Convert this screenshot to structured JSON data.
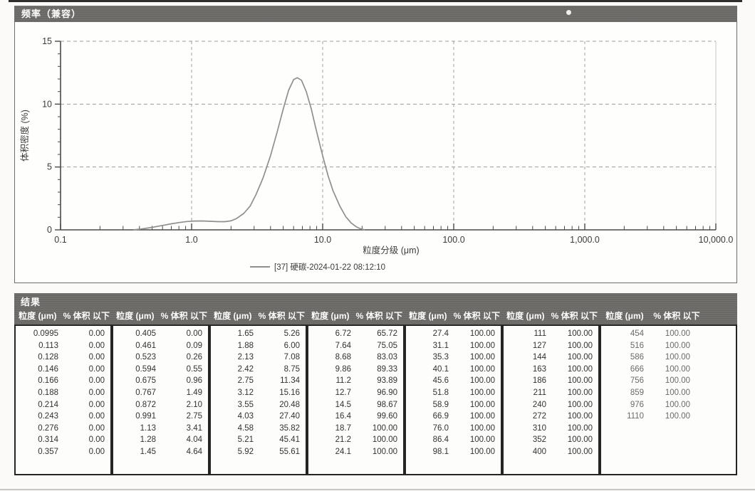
{
  "chart_panel": {
    "title": "频率（兼容）"
  },
  "chart_data": {
    "type": "line",
    "title": "频率（兼容）",
    "xlabel": "粒度分级 (μm)",
    "ylabel": "体积密度 (%)",
    "x_scale": "log",
    "xlim": [
      0.1,
      10000
    ],
    "ylim": [
      0,
      15
    ],
    "y_ticks": [
      0,
      5,
      10,
      15
    ],
    "x_ticks": [
      {
        "v": 0.1,
        "label": "0.1"
      },
      {
        "v": 1,
        "label": "1.0"
      },
      {
        "v": 10,
        "label": "10.0"
      },
      {
        "v": 100,
        "label": "100.0"
      },
      {
        "v": 1000,
        "label": "1,000.0"
      },
      {
        "v": 10000,
        "label": "10,000.0"
      }
    ],
    "grid": "dashed",
    "legend_position": "bottom",
    "series": [
      {
        "name": "[37] 硬碳-2024-01-22 08:12:10",
        "color": "#8f8f8f",
        "points": [
          [
            0.36,
            0
          ],
          [
            0.42,
            0.08
          ],
          [
            0.5,
            0.2
          ],
          [
            0.6,
            0.35
          ],
          [
            0.7,
            0.48
          ],
          [
            0.8,
            0.58
          ],
          [
            0.92,
            0.66
          ],
          [
            1.05,
            0.7
          ],
          [
            1.2,
            0.71
          ],
          [
            1.4,
            0.68
          ],
          [
            1.6,
            0.65
          ],
          [
            1.8,
            0.65
          ],
          [
            2.0,
            0.72
          ],
          [
            2.2,
            0.9
          ],
          [
            2.5,
            1.3
          ],
          [
            2.8,
            1.9
          ],
          [
            3.1,
            2.8
          ],
          [
            3.5,
            4.1
          ],
          [
            4.0,
            5.9
          ],
          [
            4.5,
            7.8
          ],
          [
            5.0,
            9.6
          ],
          [
            5.5,
            11.1
          ],
          [
            6.0,
            11.95
          ],
          [
            6.4,
            12.1
          ],
          [
            6.9,
            11.9
          ],
          [
            7.5,
            11.0
          ],
          [
            8.2,
            9.6
          ],
          [
            9.0,
            7.8
          ],
          [
            10.0,
            5.9
          ],
          [
            11.0,
            4.3
          ],
          [
            12.0,
            3.1
          ],
          [
            13.5,
            1.9
          ],
          [
            15.0,
            1.05
          ],
          [
            16.5,
            0.55
          ],
          [
            18.0,
            0.25
          ],
          [
            19.5,
            0.08
          ],
          [
            21.0,
            0
          ]
        ]
      }
    ]
  },
  "results": {
    "title": "结果",
    "col_header_size": "粒度 (μm)",
    "col_header_pct": "% 体积 以下",
    "groups": [
      {
        "rows": [
          [
            "0.0995",
            "0.00"
          ],
          [
            "0.113",
            "0.00"
          ],
          [
            "0.128",
            "0.00"
          ],
          [
            "0.146",
            "0.00"
          ],
          [
            "0.166",
            "0.00"
          ],
          [
            "0.188",
            "0.00"
          ],
          [
            "0.214",
            "0.00"
          ],
          [
            "0.243",
            "0.00"
          ],
          [
            "0.276",
            "0.00"
          ],
          [
            "0.314",
            "0.00"
          ],
          [
            "0.357",
            "0.00"
          ]
        ]
      },
      {
        "rows": [
          [
            "0.405",
            "0.00"
          ],
          [
            "0.461",
            "0.09"
          ],
          [
            "0.523",
            "0.26"
          ],
          [
            "0.594",
            "0.55"
          ],
          [
            "0.675",
            "0.96"
          ],
          [
            "0.767",
            "1.49"
          ],
          [
            "0.872",
            "2.10"
          ],
          [
            "0.991",
            "2.75"
          ],
          [
            "1.13",
            "3.41"
          ],
          [
            "1.28",
            "4.04"
          ],
          [
            "1.45",
            "4.64"
          ]
        ]
      },
      {
        "rows": [
          [
            "1.65",
            "5.26"
          ],
          [
            "1.88",
            "6.00"
          ],
          [
            "2.13",
            "7.08"
          ],
          [
            "2.42",
            "8.75"
          ],
          [
            "2.75",
            "11.34"
          ],
          [
            "3.12",
            "15.16"
          ],
          [
            "3.55",
            "20.48"
          ],
          [
            "4.03",
            "27.40"
          ],
          [
            "4.58",
            "35.82"
          ],
          [
            "5.21",
            "45.41"
          ],
          [
            "5.92",
            "55.61"
          ]
        ]
      },
      {
        "rows": [
          [
            "6.72",
            "65.72"
          ],
          [
            "7.64",
            "75.05"
          ],
          [
            "8.68",
            "83.03"
          ],
          [
            "9.86",
            "89.33"
          ],
          [
            "11.2",
            "93.89"
          ],
          [
            "12.7",
            "96.90"
          ],
          [
            "14.5",
            "98.67"
          ],
          [
            "16.4",
            "99.60"
          ],
          [
            "18.7",
            "100.00"
          ],
          [
            "21.2",
            "100.00"
          ],
          [
            "24.1",
            "100.00"
          ]
        ]
      },
      {
        "rows": [
          [
            "27.4",
            "100.00"
          ],
          [
            "31.1",
            "100.00"
          ],
          [
            "35.3",
            "100.00"
          ],
          [
            "40.1",
            "100.00"
          ],
          [
            "45.6",
            "100.00"
          ],
          [
            "51.8",
            "100.00"
          ],
          [
            "58.9",
            "100.00"
          ],
          [
            "66.9",
            "100.00"
          ],
          [
            "76.0",
            "100.00"
          ],
          [
            "86.4",
            "100.00"
          ],
          [
            "98.1",
            "100.00"
          ]
        ]
      },
      {
        "rows": [
          [
            "111",
            "100.00"
          ],
          [
            "127",
            "100.00"
          ],
          [
            "144",
            "100.00"
          ],
          [
            "163",
            "100.00"
          ],
          [
            "186",
            "100.00"
          ],
          [
            "211",
            "100.00"
          ],
          [
            "240",
            "100.00"
          ],
          [
            "272",
            "100.00"
          ],
          [
            "310",
            "100.00"
          ],
          [
            "352",
            "100.00"
          ],
          [
            "400",
            "100.00"
          ]
        ]
      },
      {
        "rows": [
          [
            "454",
            "100.00"
          ],
          [
            "516",
            "100.00"
          ],
          [
            "586",
            "100.00"
          ],
          [
            "666",
            "100.00"
          ],
          [
            "756",
            "100.00"
          ],
          [
            "859",
            "100.00"
          ],
          [
            "976",
            "100.00"
          ],
          [
            "1110",
            "100.00"
          ]
        ]
      }
    ]
  },
  "colors": {
    "bar_gray": "#6e6c69",
    "curve": "#8f8f8f",
    "axis": "#4a4a48",
    "grid": "#9d9c9a"
  }
}
